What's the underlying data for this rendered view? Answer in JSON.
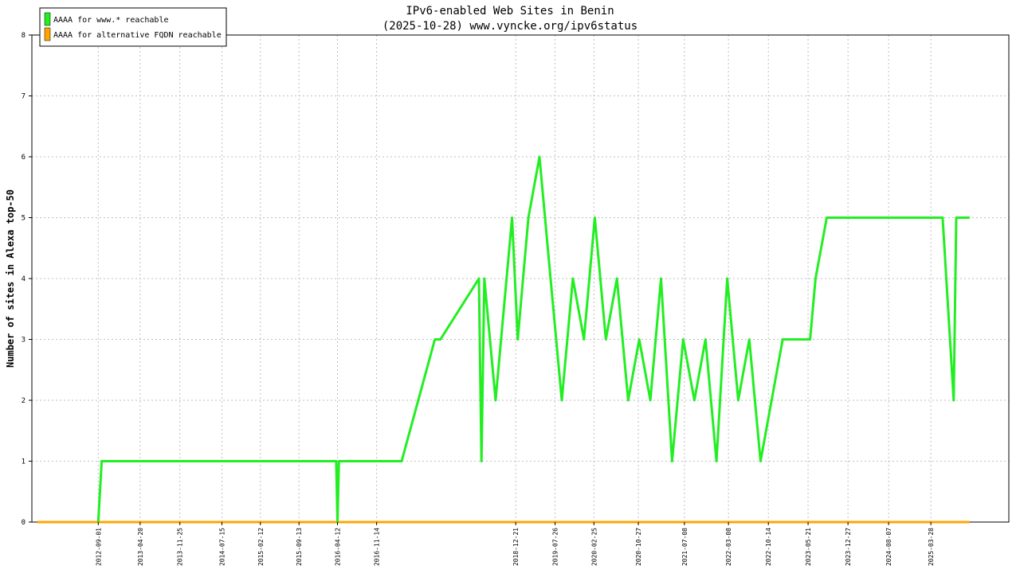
{
  "chart_data": {
    "type": "line",
    "title": "IPv6-enabled Web Sites in Benin",
    "subtitle": "(2025-10-28) www.vyncke.org/ipv6status",
    "ylabel": "Number of sites in Alexa top-50",
    "xlabel": "",
    "ylim": [
      0,
      8
    ],
    "yticks": [
      "0",
      "1",
      "2",
      "3",
      "4",
      "5",
      "6",
      "7",
      "8"
    ],
    "xlim": [
      "2011-09-01",
      "2026-06-01"
    ],
    "xticks": [
      "2012-09-01",
      "2013-04-20",
      "2013-11-25",
      "2014-07-15",
      "2015-02-12",
      "2015-09-13",
      "2016-04-12",
      "2016-11-14",
      "2018-12-21",
      "2019-07-26",
      "2020-02-25",
      "2020-10-27",
      "2021-07-08",
      "2022-03-08",
      "2022-10-14",
      "2023-05-21",
      "2023-12-27",
      "2024-08-07",
      "2025-03-28"
    ],
    "grid": true,
    "legend_position": "top-left",
    "series": [
      {
        "name": "AAAA for www.* reachable",
        "color": "#22ee22",
        "x": [
          "2012-09-01",
          "2012-09-20",
          "2016-04-05",
          "2016-04-12",
          "2016-04-20",
          "2017-04-01",
          "2017-10-01",
          "2017-11-01",
          "2018-06-01",
          "2018-06-15",
          "2018-07-01",
          "2018-09-01",
          "2018-12-01",
          "2019-01-01",
          "2019-03-01",
          "2019-05-01",
          "2019-07-01",
          "2019-09-01",
          "2019-11-01",
          "2020-01-01",
          "2020-03-01",
          "2020-05-01",
          "2020-07-01",
          "2020-09-01",
          "2020-11-01",
          "2021-01-01",
          "2021-03-01",
          "2021-05-01",
          "2021-07-01",
          "2021-09-01",
          "2021-11-01",
          "2022-01-01",
          "2022-03-01",
          "2022-05-01",
          "2022-07-01",
          "2022-09-01",
          "2022-11-01",
          "2023-01-01",
          "2023-02-01",
          "2023-06-01",
          "2023-07-01",
          "2023-09-01",
          "2024-06-01",
          "2025-06-01",
          "2025-08-01",
          "2025-08-15",
          "2025-10-28"
        ],
        "y": [
          0,
          1,
          1,
          0,
          1,
          1,
          3,
          3,
          4,
          1,
          4,
          2,
          5,
          3,
          5,
          6,
          4,
          2,
          4,
          3,
          5,
          3,
          4,
          2,
          3,
          2,
          4,
          1,
          3,
          2,
          3,
          1,
          4,
          2,
          3,
          1,
          2,
          3,
          3,
          3,
          4,
          5,
          5,
          5,
          2,
          5,
          5
        ]
      },
      {
        "name": "AAAA for alternative FQDN reachable",
        "color": "#ffa500",
        "x": [
          "2011-10-01",
          "2025-10-28"
        ],
        "y": [
          0,
          0
        ]
      }
    ]
  }
}
